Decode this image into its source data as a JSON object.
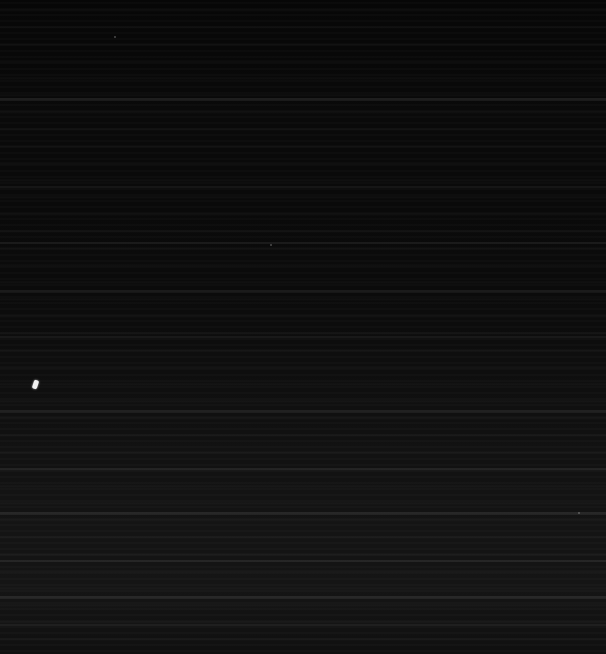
{
  "image": {
    "description_tone": "dark",
    "colors": {
      "background": "#060606",
      "highlight": "#f2f2f2"
    }
  }
}
